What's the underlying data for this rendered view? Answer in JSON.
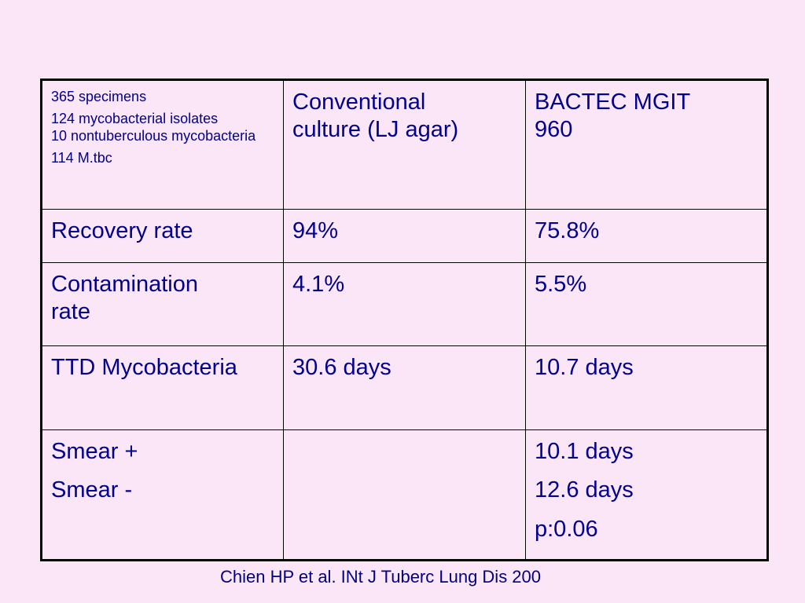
{
  "table": {
    "header": {
      "info_lines": [
        "365 specimens",
        "124 mycobacterial isolates",
        "10 nontuberculous mycobacteria",
        "114 M.tbc"
      ],
      "col2_lines": [
        "Conventional",
        "culture  (LJ agar)"
      ],
      "col3_lines": [
        "BACTEC MGIT",
        "960"
      ]
    },
    "rows": [
      {
        "label": [
          "Recovery rate"
        ],
        "conventional": [
          "94%"
        ],
        "mgit": [
          "75.8%"
        ]
      },
      {
        "label": [
          "Contamination",
          "rate"
        ],
        "conventional": [
          "4.1%"
        ],
        "mgit": [
          "5.5%"
        ]
      },
      {
        "label": [
          "TTD Mycobacteria"
        ],
        "conventional": [
          "30.6 days"
        ],
        "mgit": [
          "10.7 days"
        ]
      },
      {
        "label": [
          "Smear +",
          "Smear -"
        ],
        "conventional": [],
        "mgit": [
          "10.1 days",
          "12.6 days",
          "p:0.06"
        ]
      }
    ]
  },
  "citation": "Chien HP et al. INt J Tuberc Lung Dis 200"
}
